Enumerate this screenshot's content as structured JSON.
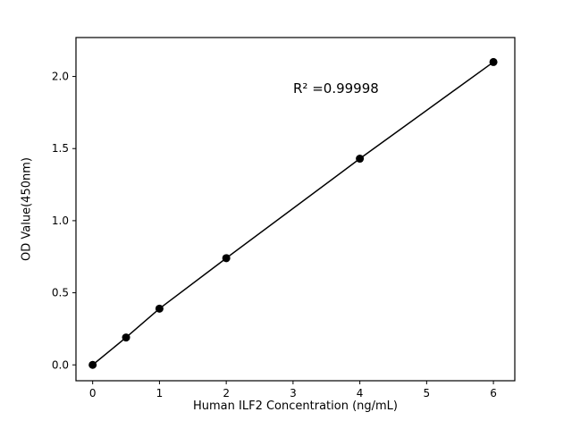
{
  "figure": {
    "background": "#ffffff"
  },
  "chart_data": {
    "type": "line",
    "x": [
      0,
      0.5,
      1,
      2,
      4,
      6
    ],
    "y": [
      0.0,
      0.19,
      0.39,
      0.74,
      1.43,
      2.1
    ],
    "title": "",
    "xlabel": "Human ILF2 Concentration (ng/mL)",
    "ylabel": "OD Value(450nm)",
    "annotation": "R² =0.99998",
    "xlim": [
      -0.25,
      6.32
    ],
    "ylim": [
      -0.11,
      2.27
    ],
    "xticks": [
      0,
      1,
      2,
      3,
      4,
      5,
      6
    ],
    "yticks": [
      0.0,
      0.5,
      1.0,
      1.5,
      2.0
    ],
    "grid": false,
    "legend_position": "none",
    "marker": "circle",
    "marker_color": "#000000",
    "line_color": "#000000",
    "axis_color": "#000000"
  }
}
